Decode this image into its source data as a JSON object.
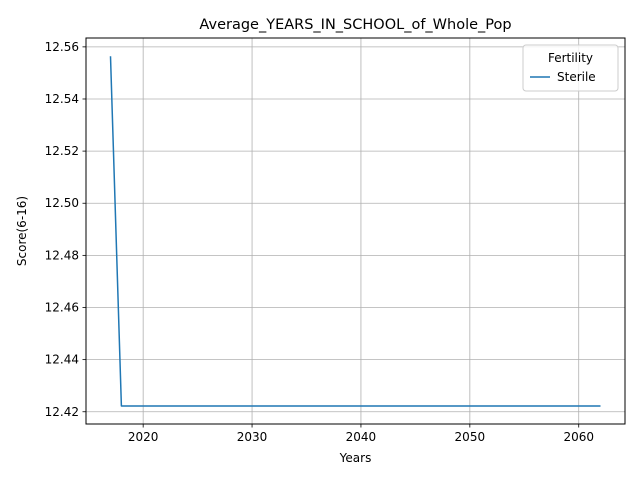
{
  "chart_data": {
    "type": "line",
    "title": "Average_YEARS_IN_SCHOOL_of_Whole_Pop",
    "xlabel": "Years",
    "ylabel": "Score(6-16)",
    "xlim": [
      2014.75,
      2064.25
    ],
    "ylim": [
      12.4153,
      12.5634
    ],
    "xticks": [
      2020,
      2030,
      2040,
      2050,
      2060
    ],
    "yticks": [
      12.42,
      12.44,
      12.46,
      12.48,
      12.5,
      12.52,
      12.54,
      12.56
    ],
    "ytick_labels": [
      "12.42",
      "12.44",
      "12.46",
      "12.48",
      "12.50",
      "12.52",
      "12.54",
      "12.56"
    ],
    "grid": true,
    "legend": {
      "title": "Fertility",
      "placement": "top-right"
    },
    "series": [
      {
        "name": "Sterile",
        "color": "#1f77b4",
        "x": [
          2017,
          2018,
          2062
        ],
        "y": [
          12.5564,
          12.4222,
          12.4222
        ]
      }
    ]
  }
}
